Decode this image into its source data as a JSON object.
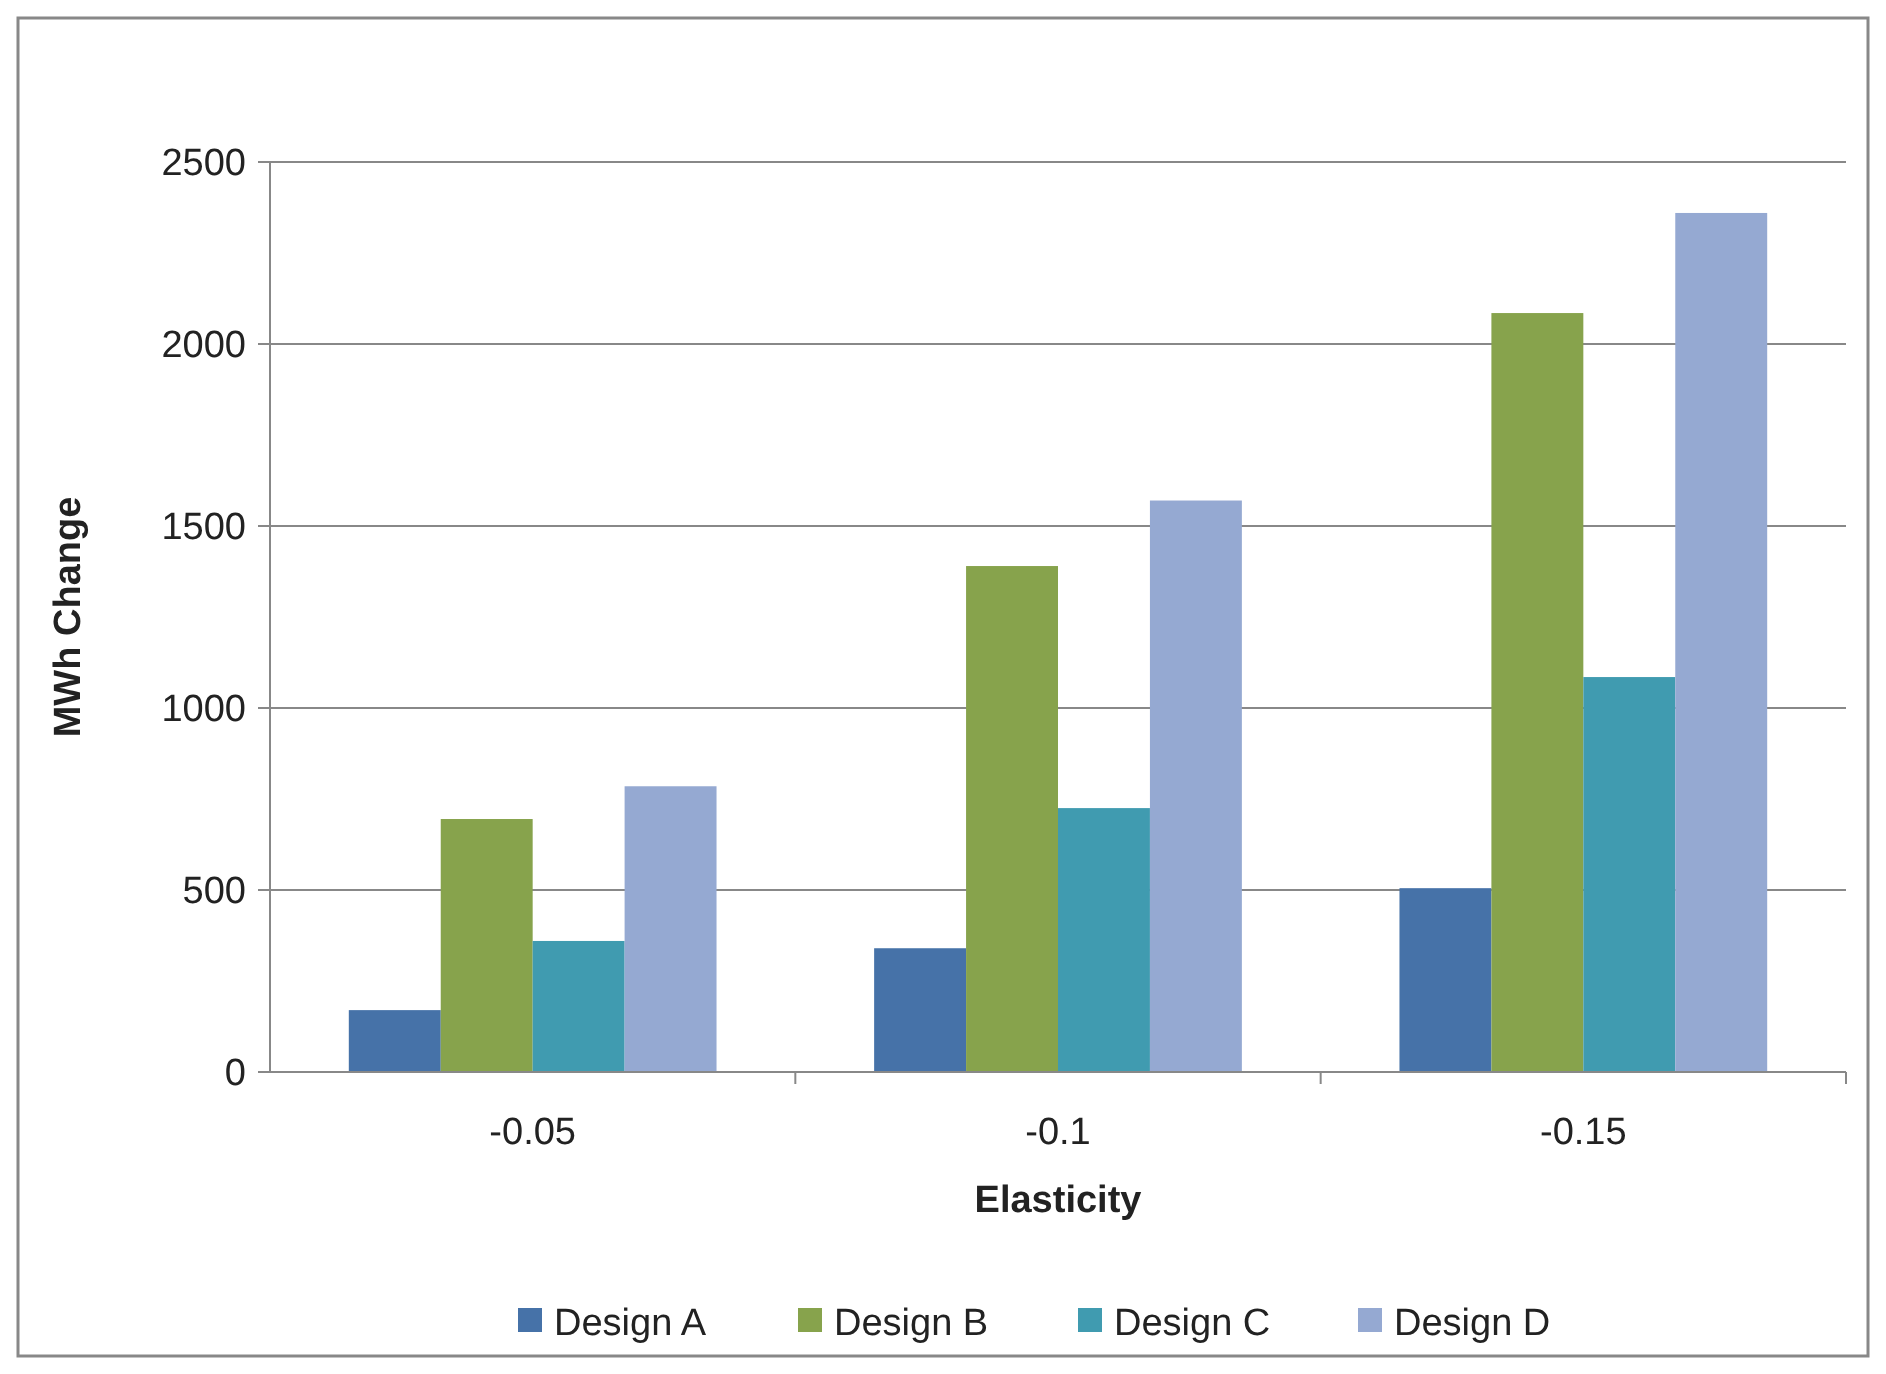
{
  "chart_data": {
    "type": "bar",
    "xlabel": "Elasticity",
    "ylabel": "MWh Change",
    "categories": [
      "-0.05",
      "-0.1",
      "-0.15"
    ],
    "series": [
      {
        "name": "Design A",
        "color": "#4672a8",
        "values": [
          170,
          340,
          505
        ]
      },
      {
        "name": "Design B",
        "color": "#87a34c",
        "values": [
          695,
          1390,
          2085
        ]
      },
      {
        "name": "Design C",
        "color": "#409bb0",
        "values": [
          360,
          725,
          1085
        ]
      },
      {
        "name": "Design D",
        "color": "#95a9d2",
        "values": [
          785,
          1570,
          2360
        ]
      }
    ],
    "ylim": [
      0,
      2500
    ],
    "yticks": [
      0,
      500,
      1000,
      1500,
      2000,
      2500
    ],
    "grid": "y",
    "legend": "bottom"
  }
}
